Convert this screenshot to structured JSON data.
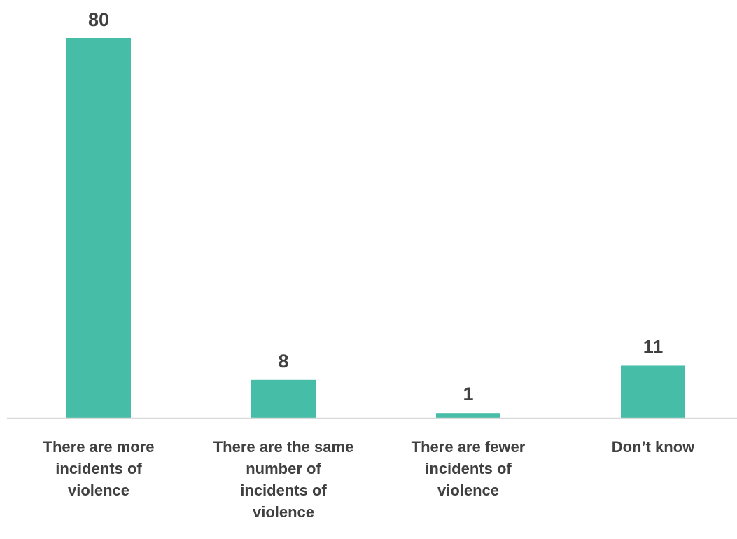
{
  "chart_data": {
    "type": "bar",
    "title": "",
    "xlabel": "",
    "ylabel": "",
    "categories": [
      "There are more incidents of violence",
      "There are the same number of incidents of violence",
      "There are fewer incidents of violence",
      "Don’t know"
    ],
    "category_lines": [
      [
        "There are more",
        "incidents of",
        "violence"
      ],
      [
        "There are the same",
        "number of",
        "incidents of",
        "violence"
      ],
      [
        "There are fewer",
        "incidents of",
        "violence"
      ],
      [
        "Don’t know"
      ]
    ],
    "values": [
      80,
      8,
      1,
      11
    ],
    "data_labels": [
      "80",
      "8",
      "1",
      "11"
    ],
    "ylim": [
      0,
      80
    ],
    "grid": false,
    "legend": "none",
    "bar_color": "#45BDA7",
    "axis_color": "#D9D9D9",
    "text_color": "#404040"
  }
}
